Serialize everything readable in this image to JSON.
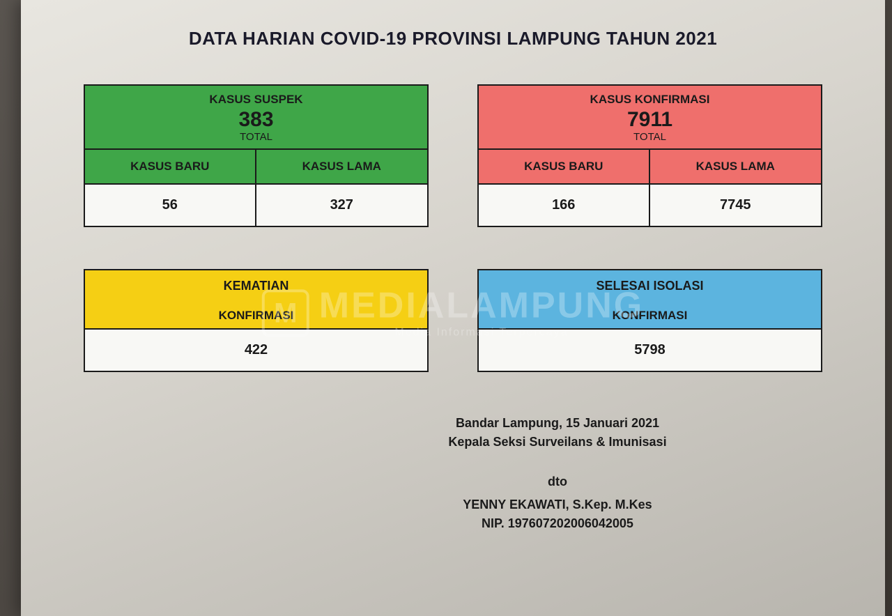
{
  "title": "DATA HARIAN COVID-19 PROVINSI LAMPUNG TAHUN 2021",
  "colors": {
    "green": "#3fa648",
    "red": "#ef6f6c",
    "yellow": "#f5cf14",
    "blue": "#5cb4df",
    "border": "#1a1a1a",
    "value_bg": "#f8f8f5"
  },
  "total_label": "TOTAL",
  "sub_labels": {
    "baru": "KASUS BARU",
    "lama": "KASUS LAMA"
  },
  "confirm_label": "KONFIRMASI",
  "cards": {
    "suspek": {
      "label": "KASUS SUSPEK",
      "total": "383",
      "baru": "56",
      "lama": "327"
    },
    "konfirmasi": {
      "label": "KASUS KONFIRMASI",
      "total": "7911",
      "baru": "166",
      "lama": "7745"
    },
    "kematian": {
      "label": "KEMATIAN",
      "value": "422"
    },
    "selesai": {
      "label": "SELESAI ISOLASI",
      "value": "5798"
    }
  },
  "footer": {
    "place_date": "Bandar Lampung, 15 Januari  2021",
    "role": "Kepala Seksi Surveilans & Imunisasi",
    "dto": "dto",
    "name": "YENNY EKAWATI, S.Kep. M.Kes",
    "nip": "NIP. 197607202006042005"
  },
  "watermark": {
    "main": "MEDIALAMPUNG",
    "sub": "Media Informasi Terpercaya",
    "icon_letter": "M"
  }
}
